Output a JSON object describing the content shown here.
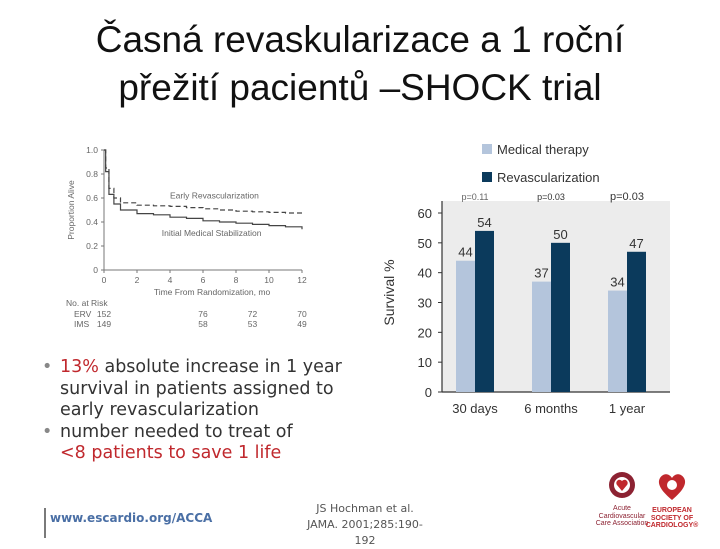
{
  "title": {
    "line1": "Časná revaskularizace a 1 roční",
    "line2": "přežití pacientů –SHOCK trial"
  },
  "chart_data": [
    {
      "type": "line",
      "xlabel": "Time From Randomization, mo",
      "ylabel": "Proportion Alive",
      "xticks": [
        "0",
        "2",
        "4",
        "6",
        "8",
        "10",
        "12"
      ],
      "yticks": [
        "0",
        "0.2",
        "0.4",
        "0.6",
        "0.8",
        "1.0"
      ],
      "xlim": [
        0,
        12
      ],
      "ylim": [
        0,
        1.0
      ],
      "series": [
        {
          "name": "Early Revascularization",
          "style": "dashed",
          "x": [
            0,
            0.1,
            0.3,
            0.6,
            1,
            2,
            3,
            4,
            5,
            6,
            7,
            8,
            9,
            10,
            11,
            12
          ],
          "y": [
            1.0,
            0.85,
            0.68,
            0.6,
            0.56,
            0.54,
            0.535,
            0.53,
            0.52,
            0.51,
            0.5,
            0.49,
            0.485,
            0.48,
            0.475,
            0.47
          ]
        },
        {
          "name": "Initial Medical Stabilization",
          "style": "solid",
          "x": [
            0,
            0.1,
            0.3,
            0.6,
            1,
            2,
            3,
            4,
            5,
            6,
            7,
            8,
            9,
            10,
            11,
            12
          ],
          "y": [
            1.0,
            0.82,
            0.63,
            0.55,
            0.5,
            0.47,
            0.46,
            0.44,
            0.43,
            0.41,
            0.4,
            0.39,
            0.38,
            0.37,
            0.36,
            0.34
          ]
        }
      ],
      "risk_table": {
        "header": "No. at Risk",
        "rows": [
          {
            "label": "ERV",
            "values": [
              "152",
              "76",
              "72",
              "70"
            ]
          },
          {
            "label": "IMS",
            "values": [
              "149",
              "58",
              "53",
              "49"
            ]
          }
        ]
      }
    },
    {
      "type": "bar",
      "ylabel": "Survival %",
      "categories": [
        "30 days",
        "6 months",
        "1 year"
      ],
      "yticks": [
        "0",
        "10",
        "20",
        "30",
        "40",
        "50",
        "60"
      ],
      "ylim": [
        0,
        60
      ],
      "grid": false,
      "legend_placement": "top",
      "series": [
        {
          "name": "Medical therapy",
          "color": "#b4c5dc",
          "values": [
            44,
            37,
            34
          ]
        },
        {
          "name": "Revascularization",
          "color": "#0b3a5c",
          "values": [
            54,
            50,
            47
          ]
        }
      ],
      "annotations": [
        "p=0.11",
        "p=0.03",
        "p=0.03"
      ]
    }
  ],
  "bullets": [
    {
      "parts": [
        "13% absolute increase in 1 year",
        "survival in patients assigned to",
        "early revascularization"
      ],
      "red_prefix": "13%"
    },
    {
      "parts": [
        "number needed to treat of",
        "<8 patients to save 1 life"
      ],
      "red_line": 1
    }
  ],
  "footer": {
    "url": "www.escardio.org/ACCA",
    "ref_line1": "JS Hochman et al.",
    "ref_line2": "JAMA. 2001;285:190-192"
  },
  "logos": {
    "acca_text": [
      "Acute",
      "Cardiovascular",
      "Care Association"
    ],
    "esc_text": [
      "EUROPEAN",
      "SOCIETY OF",
      "CARDIOLOGY®"
    ]
  },
  "colors": {
    "red": "#c0282d",
    "medical": "#b4c5dc",
    "revasc": "#0b3a5c",
    "chart_bg": "#ececec"
  }
}
